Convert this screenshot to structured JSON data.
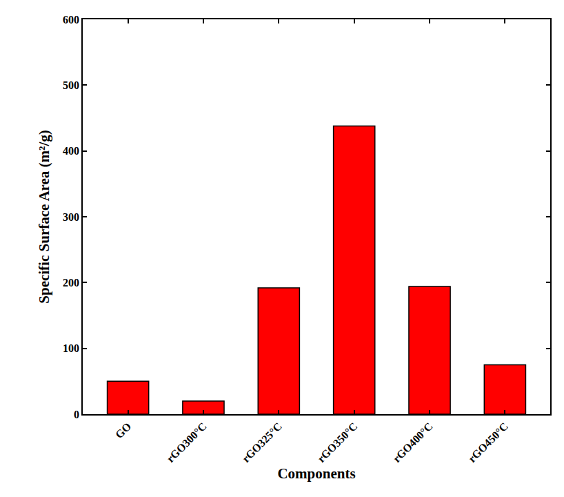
{
  "chart_data": {
    "type": "bar",
    "x_label": "Components",
    "y_label": "Specific Surface Area (m²/g)",
    "categories": [
      "GO",
      "rGO300°C",
      "rGO325°C",
      "rGO350°C",
      "rGO400°C",
      "rGO450°C"
    ],
    "values": [
      50,
      20,
      192,
      438,
      194,
      75
    ],
    "color": "#ff0000",
    "ylim": [
      0,
      600
    ],
    "yticks": [
      0,
      100,
      200,
      300,
      400,
      500,
      600
    ],
    "grid": false
  }
}
